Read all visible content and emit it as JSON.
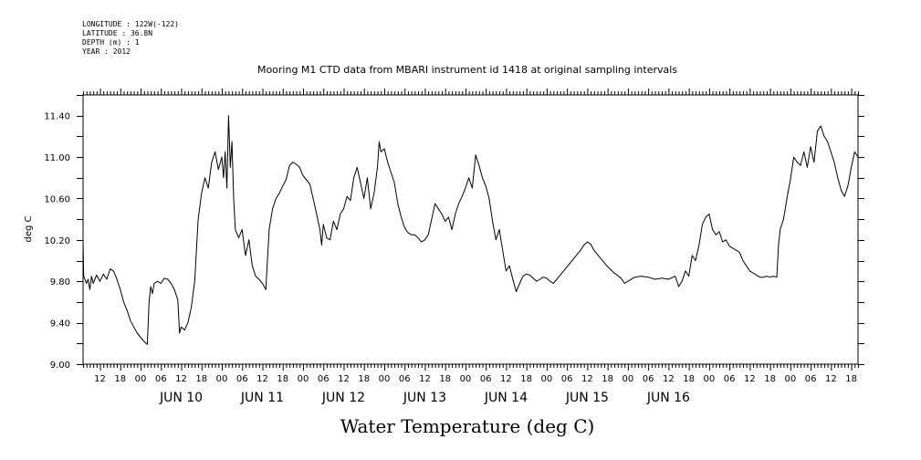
{
  "meta": {
    "longitude": "LONGITUDE : 122W(-122)",
    "latitude": "LATITUDE : 36.8N",
    "depth": "DEPTH (m) : 1",
    "year": "YEAR : 2012"
  },
  "chart_data": {
    "type": "line",
    "title": "Mooring M1 CTD data from MBARI instrument id 1418 at original sampling intervals",
    "xlabel": "Water Temperature (deg C)",
    "ylabel": "deg C",
    "ylim": [
      9.0,
      11.6
    ],
    "y_ticks": [
      "9.00",
      "9.40",
      "9.80",
      "10.20",
      "10.60",
      "11.00",
      "11.40"
    ],
    "x_range_hours": [
      -17,
      212
    ],
    "hour_labels": [
      "00",
      "06",
      "12",
      "18"
    ],
    "day_labels": [
      "JUN 10",
      "JUN 11",
      "JUN 12",
      "JUN 13",
      "JUN 14",
      "JUN 15",
      "JUN 16"
    ],
    "grid": false,
    "x_unit": "hours since 00:00 JUN 10",
    "series": [
      {
        "color": "#000000",
        "points": [
          [
            -17,
            10.18
          ],
          [
            -16.8,
            9.85
          ],
          [
            -16,
            9.78
          ],
          [
            -15.5,
            9.82
          ],
          [
            -15,
            9.72
          ],
          [
            -14.5,
            9.85
          ],
          [
            -14,
            9.78
          ],
          [
            -13,
            9.86
          ],
          [
            -12,
            9.8
          ],
          [
            -11,
            9.87
          ],
          [
            -10,
            9.82
          ],
          [
            -9,
            9.92
          ],
          [
            -8,
            9.9
          ],
          [
            -7,
            9.82
          ],
          [
            -6,
            9.72
          ],
          [
            -5,
            9.6
          ],
          [
            -4,
            9.52
          ],
          [
            -3,
            9.42
          ],
          [
            -2,
            9.36
          ],
          [
            -1,
            9.3
          ],
          [
            0,
            9.26
          ],
          [
            1,
            9.22
          ],
          [
            2,
            9.19
          ],
          [
            2.5,
            9.6
          ],
          [
            3,
            9.75
          ],
          [
            3.5,
            9.68
          ],
          [
            4,
            9.78
          ],
          [
            5,
            9.8
          ],
          [
            6,
            9.78
          ],
          [
            7,
            9.83
          ],
          [
            8,
            9.82
          ],
          [
            9,
            9.78
          ],
          [
            10,
            9.72
          ],
          [
            11,
            9.62
          ],
          [
            11.5,
            9.3
          ],
          [
            12,
            9.36
          ],
          [
            13,
            9.33
          ],
          [
            14,
            9.4
          ],
          [
            15,
            9.55
          ],
          [
            16,
            9.8
          ],
          [
            16.5,
            10.1
          ],
          [
            17,
            10.4
          ],
          [
            18,
            10.65
          ],
          [
            19,
            10.8
          ],
          [
            20,
            10.7
          ],
          [
            21,
            10.95
          ],
          [
            22,
            11.05
          ],
          [
            23,
            10.88
          ],
          [
            24,
            11.0
          ],
          [
            24.5,
            10.8
          ],
          [
            25,
            11.05
          ],
          [
            25.5,
            10.7
          ],
          [
            26,
            11.4
          ],
          [
            26.5,
            10.9
          ],
          [
            27,
            11.15
          ],
          [
            27.5,
            10.6
          ],
          [
            28,
            10.3
          ],
          [
            29,
            10.22
          ],
          [
            30,
            10.3
          ],
          [
            31,
            10.05
          ],
          [
            32,
            10.2
          ],
          [
            33,
            9.95
          ],
          [
            34,
            9.85
          ],
          [
            35,
            9.82
          ],
          [
            36,
            9.78
          ],
          [
            37,
            9.72
          ],
          [
            38,
            10.3
          ],
          [
            39,
            10.5
          ],
          [
            40,
            10.6
          ],
          [
            41,
            10.65
          ],
          [
            42,
            10.72
          ],
          [
            43,
            10.78
          ],
          [
            44,
            10.92
          ],
          [
            45,
            10.95
          ],
          [
            46,
            10.93
          ],
          [
            47,
            10.9
          ],
          [
            48,
            10.82
          ],
          [
            49,
            10.78
          ],
          [
            50,
            10.74
          ],
          [
            51,
            10.6
          ],
          [
            52,
            10.45
          ],
          [
            53,
            10.3
          ],
          [
            53.5,
            10.15
          ],
          [
            54,
            10.35
          ],
          [
            55,
            10.22
          ],
          [
            56,
            10.2
          ],
          [
            57,
            10.38
          ],
          [
            58,
            10.3
          ],
          [
            59,
            10.45
          ],
          [
            60,
            10.5
          ],
          [
            61,
            10.62
          ],
          [
            62,
            10.58
          ],
          [
            63,
            10.8
          ],
          [
            64,
            10.9
          ],
          [
            65,
            10.75
          ],
          [
            66,
            10.6
          ],
          [
            67,
            10.8
          ],
          [
            68,
            10.5
          ],
          [
            69,
            10.65
          ],
          [
            70,
            10.9
          ],
          [
            70.5,
            11.15
          ],
          [
            71,
            11.05
          ],
          [
            72,
            11.08
          ],
          [
            73,
            10.95
          ],
          [
            74,
            10.85
          ],
          [
            75,
            10.75
          ],
          [
            76,
            10.55
          ],
          [
            77,
            10.42
          ],
          [
            78,
            10.32
          ],
          [
            79,
            10.27
          ],
          [
            80,
            10.25
          ],
          [
            81,
            10.25
          ],
          [
            82,
            10.22
          ],
          [
            83,
            10.18
          ],
          [
            84,
            10.2
          ],
          [
            85,
            10.25
          ],
          [
            86,
            10.4
          ],
          [
            87,
            10.55
          ],
          [
            88,
            10.5
          ],
          [
            89,
            10.45
          ],
          [
            90,
            10.38
          ],
          [
            91,
            10.42
          ],
          [
            92,
            10.3
          ],
          [
            93,
            10.45
          ],
          [
            94,
            10.55
          ],
          [
            95,
            10.62
          ],
          [
            96,
            10.7
          ],
          [
            97,
            10.8
          ],
          [
            98,
            10.7
          ],
          [
            99,
            11.02
          ],
          [
            100,
            10.92
          ],
          [
            101,
            10.8
          ],
          [
            102,
            10.72
          ],
          [
            103,
            10.6
          ],
          [
            104,
            10.38
          ],
          [
            105,
            10.2
          ],
          [
            106,
            10.3
          ],
          [
            107,
            10.1
          ],
          [
            108,
            9.9
          ],
          [
            109,
            9.95
          ],
          [
            110,
            9.82
          ],
          [
            111,
            9.7
          ],
          [
            112,
            9.78
          ],
          [
            113,
            9.85
          ],
          [
            114,
            9.87
          ],
          [
            115,
            9.86
          ],
          [
            116,
            9.83
          ],
          [
            117,
            9.8
          ],
          [
            118,
            9.82
          ],
          [
            119,
            9.84
          ],
          [
            120,
            9.83
          ],
          [
            121,
            9.8
          ],
          [
            122,
            9.78
          ],
          [
            124,
            9.86
          ],
          [
            126,
            9.94
          ],
          [
            128,
            10.02
          ],
          [
            130,
            10.1
          ],
          [
            131,
            10.15
          ],
          [
            132,
            10.18
          ],
          [
            133,
            10.16
          ],
          [
            134,
            10.1
          ],
          [
            136,
            10.02
          ],
          [
            138,
            9.94
          ],
          [
            140,
            9.88
          ],
          [
            142,
            9.83
          ],
          [
            143,
            9.78
          ],
          [
            144,
            9.8
          ],
          [
            146,
            9.84
          ],
          [
            148,
            9.85
          ],
          [
            150,
            9.84
          ],
          [
            152,
            9.82
          ],
          [
            154,
            9.83
          ],
          [
            156,
            9.82
          ],
          [
            158,
            9.85
          ],
          [
            159,
            9.75
          ],
          [
            160,
            9.8
          ],
          [
            161,
            9.9
          ],
          [
            162,
            9.85
          ],
          [
            163,
            10.05
          ],
          [
            164,
            10.0
          ],
          [
            165,
            10.15
          ],
          [
            166,
            10.35
          ],
          [
            167,
            10.42
          ],
          [
            168,
            10.45
          ],
          [
            169,
            10.3
          ],
          [
            170,
            10.25
          ],
          [
            171,
            10.28
          ],
          [
            172,
            10.18
          ],
          [
            173,
            10.2
          ],
          [
            174,
            10.14
          ],
          [
            175,
            10.12
          ],
          [
            176,
            10.1
          ],
          [
            177,
            10.08
          ],
          [
            178,
            10.0
          ],
          [
            179,
            9.95
          ],
          [
            180,
            9.9
          ],
          [
            181,
            9.88
          ],
          [
            182,
            9.86
          ],
          [
            183,
            9.84
          ],
          [
            184,
            9.84
          ],
          [
            185,
            9.85
          ],
          [
            186,
            9.84
          ],
          [
            187,
            9.85
          ],
          [
            188,
            9.84
          ],
          [
            188.5,
            10.15
          ],
          [
            189,
            10.3
          ],
          [
            190,
            10.4
          ],
          [
            191,
            10.6
          ],
          [
            192,
            10.78
          ],
          [
            193,
            11.0
          ],
          [
            194,
            10.95
          ],
          [
            195,
            10.92
          ],
          [
            196,
            11.05
          ],
          [
            197,
            10.9
          ],
          [
            198,
            11.1
          ],
          [
            199,
            10.95
          ],
          [
            200,
            11.25
          ],
          [
            201,
            11.3
          ],
          [
            202,
            11.2
          ],
          [
            203,
            11.15
          ],
          [
            204,
            11.05
          ],
          [
            205,
            10.95
          ],
          [
            206,
            10.8
          ],
          [
            207,
            10.68
          ],
          [
            208,
            10.62
          ],
          [
            209,
            10.72
          ],
          [
            210,
            10.9
          ],
          [
            211,
            11.05
          ],
          [
            212,
            11.0
          ]
        ]
      }
    ]
  }
}
